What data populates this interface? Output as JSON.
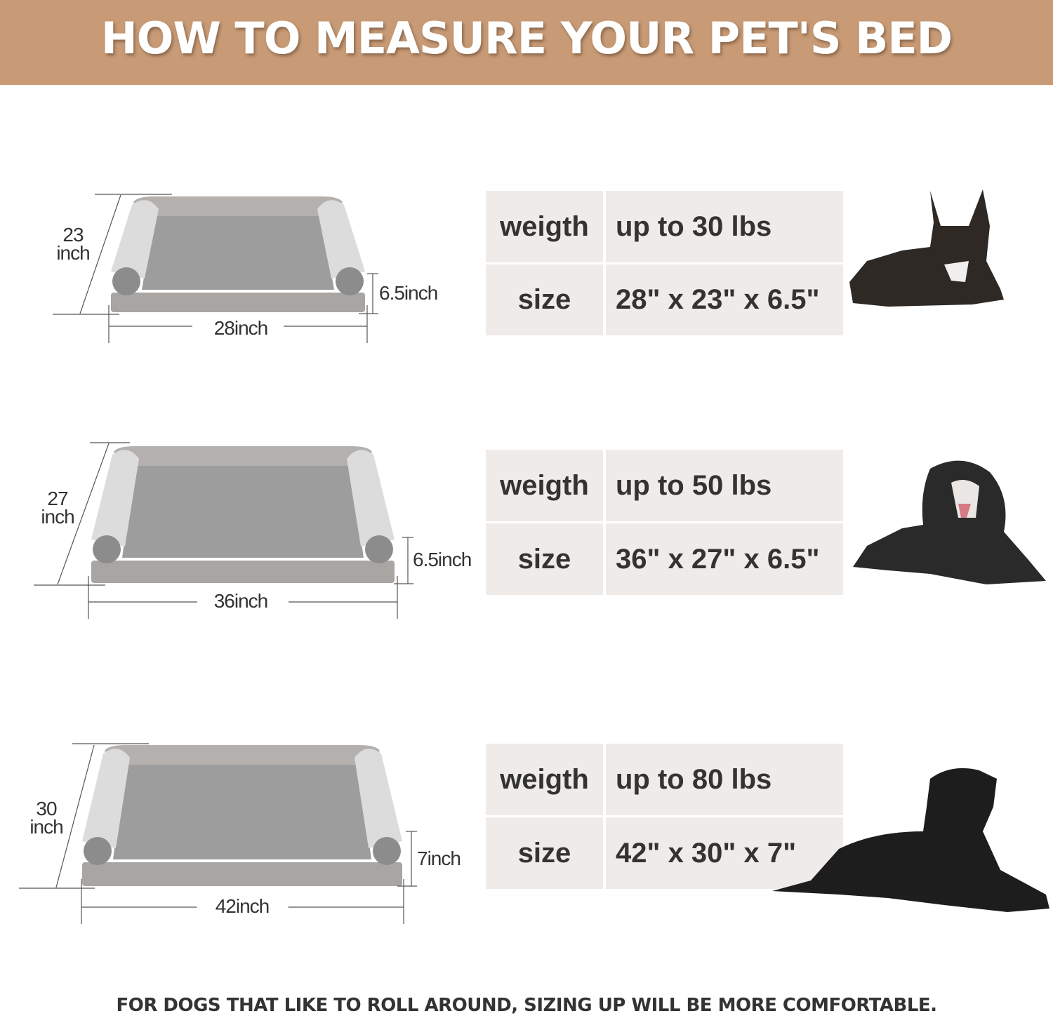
{
  "header": {
    "title": "HOW TO MEASURE YOUR PET'S BED",
    "background": "#c89b76"
  },
  "sizes": [
    {
      "depth_label": "23\ninch",
      "height_label": "6.5inch",
      "width_label": "28inch",
      "weight_label": "weigth",
      "weight_value": "up to 30 lbs",
      "size_label": "size",
      "size_value": "28\" x 23\" x 6.5\"",
      "dog": "french-bulldog"
    },
    {
      "depth_label": "27\ninch",
      "height_label": "6.5inch",
      "width_label": "36inch",
      "weight_label": "weigth",
      "weight_value": "up to 50 lbs",
      "size_label": "size",
      "size_value": "36\" x 27\" x 6.5\"",
      "dog": "spaniel"
    },
    {
      "depth_label": "30\ninch",
      "height_label": "7inch",
      "width_label": "42inch",
      "weight_label": "weigth",
      "weight_value": "up to 80 lbs",
      "size_label": "size",
      "size_value": "42\" x 30\" x 7\"",
      "dog": "labrador"
    }
  ],
  "footer": {
    "note": "FOR DOGS THAT LIKE TO ROLL AROUND, SIZING UP WILL BE MORE COMFORTABLE."
  },
  "colors": {
    "table_cell": "#efebe8",
    "text": "#333333",
    "bed_base": "#a9a5a3",
    "bed_bolster": "#dcdcdc",
    "bed_fleece": "#9d9d9d"
  }
}
